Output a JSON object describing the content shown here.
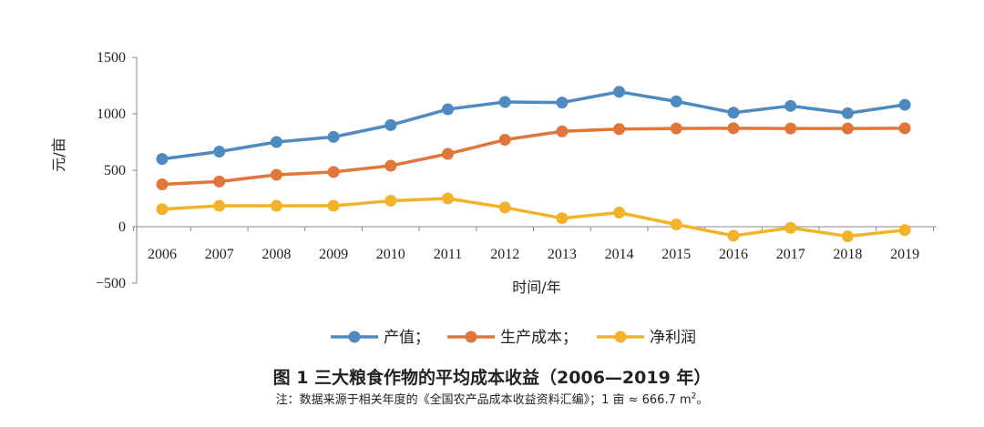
{
  "figure": {
    "title": "图 1 三大粮食作物的平均成本收益（2006—2019 年）",
    "note_main": "注：数据来源于相关年度的《全国农产品成本收益资料汇编》；1 亩 ≈ 666.7 m",
    "note_sup": "2",
    "note_end": "。"
  },
  "chart_data": {
    "type": "line",
    "xlabel": "时间/年",
    "ylabel": "元/亩",
    "ylim": [
      -500,
      1500
    ],
    "yticks": [
      1500,
      1000,
      500,
      0,
      -500
    ],
    "ytick_labels": [
      "1500",
      "1000",
      "500",
      "0",
      "−500"
    ],
    "grid": false,
    "legend_position": "bottom",
    "categories": [
      "2006",
      "2007",
      "2008",
      "2009",
      "2010",
      "2011",
      "2012",
      "2013",
      "2014",
      "2015",
      "2016",
      "2017",
      "2018",
      "2019"
    ],
    "series": [
      {
        "name": "产值；",
        "legend_label": "产值；",
        "color": "#4e89c0",
        "values": [
          600,
          665,
          750,
          795,
          900,
          1040,
          1105,
          1100,
          1195,
          1110,
          1010,
          1070,
          1005,
          1080
        ]
      },
      {
        "name": "生产成本；",
        "legend_label": "生产成本；",
        "color": "#e0763a",
        "values": [
          375,
          400,
          460,
          485,
          540,
          645,
          770,
          845,
          865,
          870,
          872,
          870,
          870,
          872
        ]
      },
      {
        "name": "净利润",
        "legend_label": "净利润",
        "color": "#f2b32b",
        "values": [
          155,
          185,
          185,
          185,
          230,
          250,
          170,
          75,
          125,
          20,
          -80,
          -10,
          -85,
          -30
        ]
      }
    ]
  }
}
